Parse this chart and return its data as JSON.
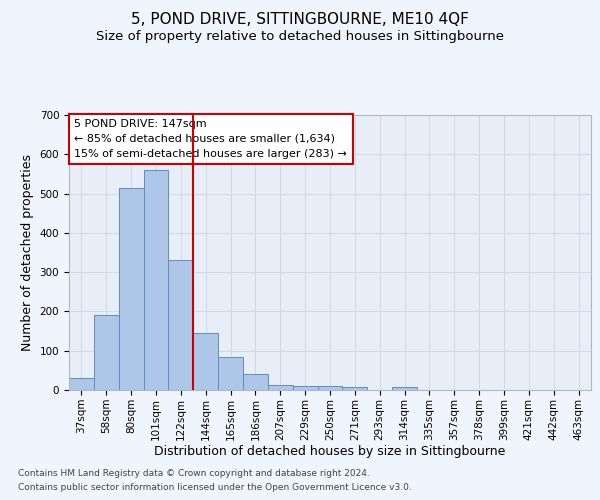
{
  "title": "5, POND DRIVE, SITTINGBOURNE, ME10 4QF",
  "subtitle": "Size of property relative to detached houses in Sittingbourne",
  "xlabel": "Distribution of detached houses by size in Sittingbourne",
  "ylabel": "Number of detached properties",
  "footnote1": "Contains HM Land Registry data © Crown copyright and database right 2024.",
  "footnote2": "Contains public sector information licensed under the Open Government Licence v3.0.",
  "categories": [
    "37sqm",
    "58sqm",
    "80sqm",
    "101sqm",
    "122sqm",
    "144sqm",
    "165sqm",
    "186sqm",
    "207sqm",
    "229sqm",
    "250sqm",
    "271sqm",
    "293sqm",
    "314sqm",
    "335sqm",
    "357sqm",
    "378sqm",
    "399sqm",
    "421sqm",
    "442sqm",
    "463sqm"
  ],
  "values": [
    30,
    190,
    515,
    560,
    330,
    145,
    85,
    40,
    12,
    10,
    10,
    8,
    0,
    7,
    0,
    0,
    0,
    0,
    0,
    0,
    0
  ],
  "bar_color": "#aec6e8",
  "bar_edge_color": "#5a8fc2",
  "vline_x": 5.5,
  "vline_color": "#cc0000",
  "annotation_text": "5 POND DRIVE: 147sqm\n← 85% of detached houses are smaller (1,634)\n15% of semi-detached houses are larger (283) →",
  "annotation_box_color": "#ffffff",
  "annotation_box_edge_color": "#cc0000",
  "ylim": [
    0,
    700
  ],
  "yticks": [
    0,
    100,
    200,
    300,
    400,
    500,
    600,
    700
  ],
  "grid_color": "#d0d8e8",
  "background_color": "#e8eef8",
  "fig_background_color": "#f0f4fc",
  "title_fontsize": 11,
  "subtitle_fontsize": 9.5,
  "axis_fontsize": 9,
  "tick_fontsize": 7.5,
  "annotation_fontsize": 8
}
